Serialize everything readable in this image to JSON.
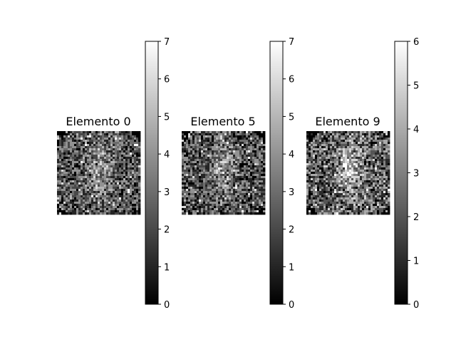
{
  "chart_data": [
    {
      "type": "heatmap",
      "title": "Elemento 0",
      "colormap": "gray",
      "colorbar": {
        "range": [
          0,
          7
        ],
        "ticks": [
          "0",
          "1",
          "2",
          "3",
          "4",
          "5",
          "6",
          "7"
        ]
      },
      "seed": 11
    },
    {
      "type": "heatmap",
      "title": "Elemento 5",
      "colormap": "gray",
      "colorbar": {
        "range": [
          0,
          7
        ],
        "ticks": [
          "0",
          "1",
          "2",
          "3",
          "4",
          "5",
          "6",
          "7"
        ]
      },
      "seed": 23
    },
    {
      "type": "heatmap",
      "title": "Elemento 9",
      "colormap": "gray",
      "colorbar": {
        "range": [
          0,
          6
        ],
        "ticks": [
          "0",
          "1",
          "2",
          "3",
          "4",
          "5",
          "6"
        ]
      },
      "seed": 37
    }
  ]
}
